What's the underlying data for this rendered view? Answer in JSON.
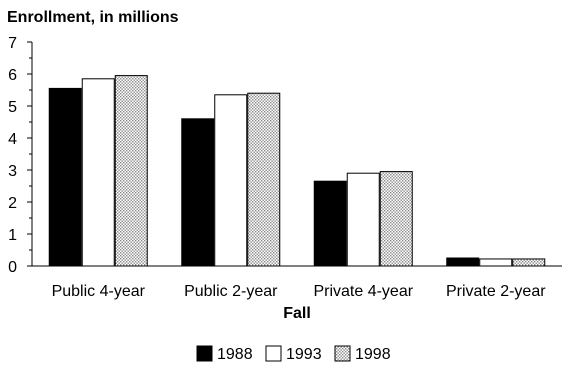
{
  "chart_data": {
    "type": "bar",
    "title": "",
    "ylabel": "Enrollment, in millions",
    "xlabel": "Fall",
    "ylim": [
      0,
      7
    ],
    "yticks": [
      0,
      1,
      2,
      3,
      4,
      5,
      6,
      7
    ],
    "grid": false,
    "legend_position": "bottom",
    "categories": [
      "Public 4-year",
      "Public 2-year",
      "Private 4-year",
      "Private 2-year"
    ],
    "series": [
      {
        "name": "1988",
        "values": [
          5.55,
          4.6,
          2.65,
          0.25
        ],
        "fill": "#000000"
      },
      {
        "name": "1993",
        "values": [
          5.85,
          5.35,
          2.9,
          0.22
        ],
        "fill": "#ffffff"
      },
      {
        "name": "1998",
        "values": [
          5.95,
          5.4,
          2.95,
          0.22
        ],
        "fill": "dots"
      }
    ]
  }
}
